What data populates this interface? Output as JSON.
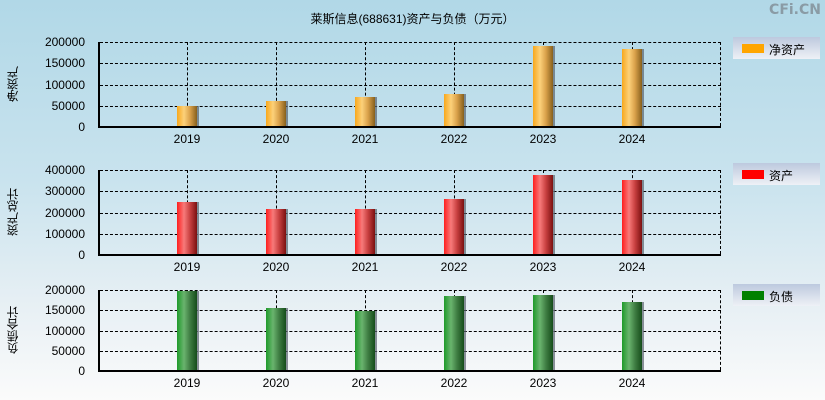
{
  "title": "莱斯信息(688631)资产与负债（万元）",
  "brand": "CFi.CN",
  "chart_data": [
    {
      "type": "bar",
      "title": "莱斯信息(688631)资产与负债（万元）",
      "ylabel": "净资产",
      "legend": "净资产",
      "color": "#ffa500",
      "categories": [
        "2019",
        "2020",
        "2021",
        "2022",
        "2023",
        "2024"
      ],
      "values": [
        47600,
        59500,
        69000,
        76000,
        188000,
        181000
      ],
      "yticks": [
        "200000",
        "150000",
        "100000",
        "50000",
        "0"
      ],
      "ylim": [
        0,
        200000
      ],
      "grid": true,
      "legend_position": "right"
    },
    {
      "type": "bar",
      "ylabel": "资产总计",
      "legend": "资产",
      "color": "#ff0000",
      "categories": [
        "2019",
        "2020",
        "2021",
        "2022",
        "2023",
        "2024"
      ],
      "values": [
        243000,
        210000,
        214000,
        257000,
        371000,
        348000
      ],
      "yticks": [
        "400000",
        "300000",
        "200000",
        "100000",
        "0"
      ],
      "ylim": [
        0,
        400000
      ],
      "grid": true,
      "legend_position": "right"
    },
    {
      "type": "bar",
      "ylabel": "负债合计",
      "legend": "负债",
      "color": "#008000",
      "categories": [
        "2019",
        "2020",
        "2021",
        "2022",
        "2023",
        "2024"
      ],
      "values": [
        195000,
        152500,
        145000,
        182500,
        185000,
        167500
      ],
      "yticks": [
        "200000",
        "150000",
        "100000",
        "50000",
        "0"
      ],
      "ylim": [
        0,
        200000
      ],
      "grid": true,
      "legend_position": "right"
    }
  ]
}
